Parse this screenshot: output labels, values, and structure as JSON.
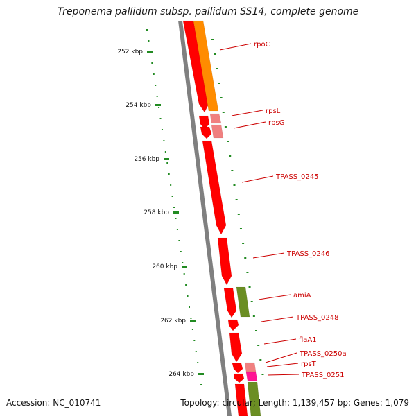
{
  "title": "Treponema pallidum subsp. pallidum SS14, complete genome",
  "footer": {
    "accession": "Accession: NC_010741",
    "summary": "Topology: circular; Length: 1,139,457 bp; Genes: 1,079"
  },
  "colors": {
    "background": "#ffffff",
    "backbone": "#808080",
    "cds_red": "#ff0000",
    "cds_orange": "#ff8c00",
    "cds_pink": "#f08080",
    "cds_magenta": "#ff1493",
    "cds_olive": "#6b8e23",
    "tick": "#228b22",
    "gene_label": "#cc0000"
  },
  "ticks": [
    {
      "label": "252 kbp"
    },
    {
      "label": "254 kbp"
    },
    {
      "label": "256 kbp"
    },
    {
      "label": "258 kbp"
    },
    {
      "label": "260 kbp"
    },
    {
      "label": "262 kbp"
    },
    {
      "label": "264 kbp"
    }
  ],
  "gene_labels": [
    "rpoC",
    "rpsL",
    "rpsG",
    "TPASS_0245",
    "TPASS_0246",
    "amiA",
    "TPASS_0248",
    "flaA1",
    "TPASS_0250a",
    "rpsT",
    "TPASS_0251"
  ]
}
